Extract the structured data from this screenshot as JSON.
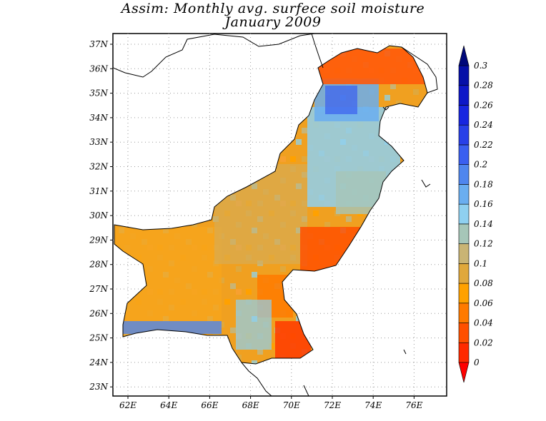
{
  "title_line1": "Assim: Monthly avg. surfece soil moisture",
  "title_line2": "January 2009",
  "map": {
    "lat_labels": [
      "37N",
      "36N",
      "35N",
      "34N",
      "33N",
      "32N",
      "31N",
      "30N",
      "29N",
      "28N",
      "27N",
      "26N",
      "25N",
      "24N",
      "23N"
    ],
    "lon_labels": [
      "62E",
      "64E",
      "66E",
      "68E",
      "70E",
      "72E",
      "74E",
      "76E"
    ],
    "grid": "dotted"
  },
  "colorbar": {
    "labels": [
      "0.3",
      "0.28",
      "0.26",
      "0.24",
      "0.22",
      "0.2",
      "0.18",
      "0.16",
      "0.14",
      "0.12",
      "0.1",
      "0.08",
      "0.06",
      "0.04",
      "0.02",
      "0"
    ],
    "colors": [
      "#ff2a00",
      "#ff5000",
      "#ff7a00",
      "#ffa100",
      "#e0a83c",
      "#c9b474",
      "#a6c6b8",
      "#8fd0f0",
      "#6aaef0",
      "#4f86ee",
      "#3a5ff0",
      "#2840e8",
      "#1826e0",
      "#0e18c8",
      "#0610a8"
    ],
    "top_color": "#00087a",
    "bottom_color": "#ff0000"
  }
}
